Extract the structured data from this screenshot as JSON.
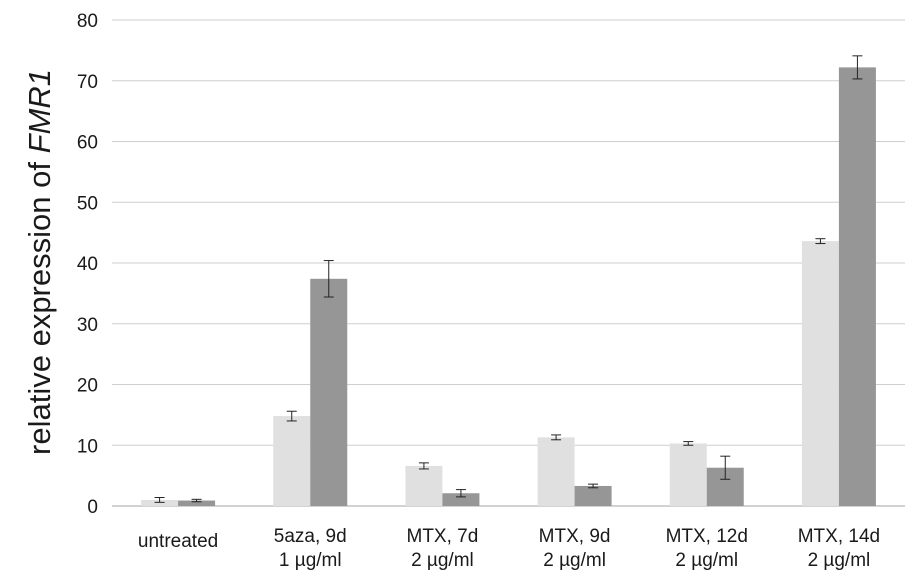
{
  "chart_data": {
    "type": "bar",
    "ylabel_prefix": "relative expression of ",
    "ylabel_italic": "FMR1",
    "ylim": [
      0,
      80
    ],
    "yticks": [
      "0",
      "10",
      "20",
      "30",
      "40",
      "50",
      "60",
      "70",
      "80"
    ],
    "grid": true,
    "legend": "none",
    "categories": [
      {
        "line1": "untreated",
        "line2": ""
      },
      {
        "line1": "5aza, 9d",
        "line2": "1 µg/ml"
      },
      {
        "line1": "MTX, 7d",
        "line2": "2 µg/ml"
      },
      {
        "line1": "MTX, 9d",
        "line2": "2 µg/ml"
      },
      {
        "line1": "MTX, 12d",
        "line2": "2 µg/ml"
      },
      {
        "line1": "MTX, 14d",
        "line2": "2 µg/ml"
      }
    ],
    "series": [
      {
        "color": "#e0e0e0",
        "values": [
          1.0,
          14.8,
          6.6,
          11.3,
          10.3,
          43.6
        ],
        "errors": [
          0.4,
          0.8,
          0.5,
          0.4,
          0.3,
          0.4
        ]
      },
      {
        "color": "#969696",
        "values": [
          0.9,
          37.4,
          2.1,
          3.3,
          6.3,
          72.2
        ],
        "errors": [
          0.2,
          3.0,
          0.6,
          0.3,
          1.9,
          1.9
        ]
      }
    ]
  }
}
